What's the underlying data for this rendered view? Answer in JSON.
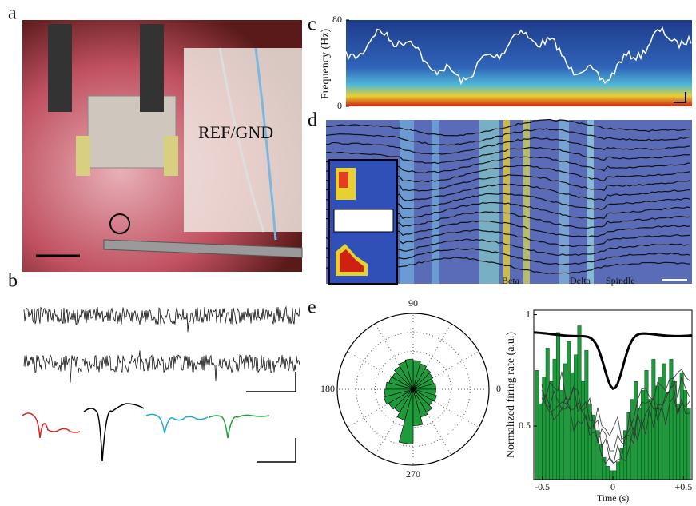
{
  "panels": {
    "a": {
      "label": "a",
      "annotation": "REF/GND"
    },
    "b": {
      "label": "b"
    },
    "c": {
      "label": "c"
    },
    "d": {
      "label": "d",
      "annotations": [
        "Beta",
        "Delta",
        "Spindle"
      ]
    },
    "e": {
      "label": "e"
    }
  },
  "chart_data": [
    {
      "type": "spectrogram",
      "ylabel": "Frequency (Hz)",
      "ylim": [
        0,
        80
      ],
      "yticks": [
        0,
        80
      ]
    },
    {
      "type": "polar",
      "angle_ticks": [
        90,
        180,
        270,
        0
      ],
      "color": "#1f9a3c",
      "values": [
        0.3,
        0.28,
        0.3,
        0.32,
        0.35,
        0.38,
        0.4,
        0.38,
        0.35,
        0.32,
        0.33,
        0.36,
        0.38,
        0.4,
        0.37,
        0.35,
        0.42,
        0.72,
        0.48,
        0.38,
        0.35,
        0.3,
        0.32,
        0.3
      ]
    },
    {
      "type": "histogram",
      "xlabel": "Time (s)",
      "ylabel": "Normalized firing rate (a.u.)",
      "color": "#1f9a3c",
      "xlim": [
        -0.56,
        0.56
      ],
      "xticks": [
        -0.5,
        0,
        {
          "value": 0.5,
          "label": "+0.5"
        }
      ],
      "ylim": [
        0.26,
        1.02
      ],
      "yticks": [
        0.5,
        1
      ],
      "bins": [
        -0.55,
        -0.525,
        -0.5,
        -0.475,
        -0.45,
        -0.425,
        -0.4,
        -0.375,
        -0.35,
        -0.325,
        -0.3,
        -0.275,
        -0.25,
        -0.225,
        -0.2,
        -0.175,
        -0.15,
        -0.125,
        -0.1,
        -0.075,
        -0.05,
        -0.025,
        0,
        0.025,
        0.05,
        0.075,
        0.1,
        0.125,
        0.15,
        0.175,
        0.2,
        0.225,
        0.25,
        0.275,
        0.3,
        0.325,
        0.35,
        0.375,
        0.4,
        0.425,
        0.45,
        0.475,
        0.5,
        0.525,
        0.55
      ],
      "values": [
        0.75,
        0.6,
        0.72,
        0.85,
        0.7,
        0.8,
        0.92,
        0.66,
        0.78,
        0.88,
        0.74,
        0.82,
        0.95,
        0.7,
        0.84,
        0.6,
        0.55,
        0.48,
        0.42,
        0.36,
        0.32,
        0.3,
        0.3,
        0.34,
        0.4,
        0.48,
        0.56,
        0.62,
        0.7,
        0.58,
        0.66,
        0.75,
        0.62,
        0.8,
        0.68,
        0.72,
        0.78,
        0.65,
        0.8,
        0.7,
        0.6,
        0.74,
        0.66,
        0.58
      ]
    }
  ]
}
